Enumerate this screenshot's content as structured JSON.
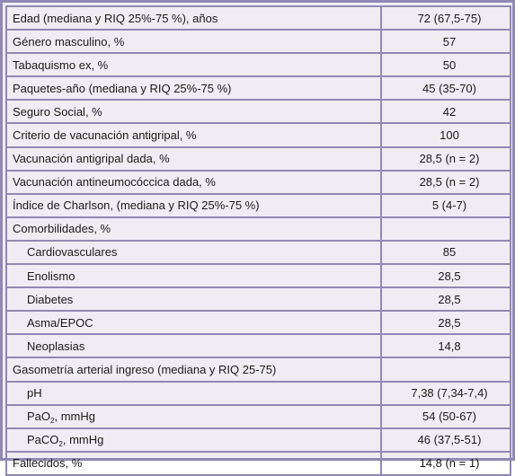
{
  "rows": [
    {
      "label": "Edad (mediana y RIQ 25%-75 %), años",
      "value": "72 (67,5-75)",
      "indent": false
    },
    {
      "label": "Género masculino, %",
      "value": "57",
      "indent": false
    },
    {
      "label": "Tabaquismo ex, %",
      "value": "50",
      "indent": false
    },
    {
      "label": "Paquetes-año (mediana y RIQ 25%-75 %)",
      "value": "45 (35-70)",
      "indent": false
    },
    {
      "label": "Seguro Social, %",
      "value": "42",
      "indent": false
    },
    {
      "label": "Criterio de vacunación antigripal, %",
      "value": "100",
      "indent": false
    },
    {
      "label": "Vacunación antigripal dada, %",
      "value": "28,5 (n = 2)",
      "indent": false
    },
    {
      "label": "Vacunación antineumocóccica dada, %",
      "value": "28,5 (n = 2)",
      "indent": false
    },
    {
      "label": "Índice de Charlson, (mediana y RIQ 25%-75 %)",
      "value": "5 (4-7)",
      "indent": false
    },
    {
      "label": "Comorbilidades, %",
      "value": "",
      "indent": false
    },
    {
      "label": "Cardiovasculares",
      "value": "85",
      "indent": true
    },
    {
      "label": "Enolismo",
      "value": "28,5",
      "indent": true
    },
    {
      "label": "Diabetes",
      "value": "28,5",
      "indent": true
    },
    {
      "label": "Asma/EPOC",
      "value": "28,5",
      "indent": true
    },
    {
      "label": "Neoplasias",
      "value": "14,8",
      "indent": true
    },
    {
      "label": "Gasometría arterial ingreso (mediana y RIQ 25-75)",
      "value": "",
      "indent": false
    },
    {
      "label": "pH",
      "value": "7,38 (7,34-7,4)",
      "indent": true
    },
    {
      "label": "PaO",
      "label_sub": "2",
      "label_suffix": ", mmHg",
      "value": "54 (50-67)",
      "indent": true
    },
    {
      "label": "PaCO",
      "label_sub": "2",
      "label_suffix": ", mmHg",
      "value": "46 (37,5-51)",
      "indent": true
    },
    {
      "label": "Fallecidos, %",
      "value": "14,8 (n = 1)",
      "indent": false
    }
  ],
  "colors": {
    "border": "#8f89b3",
    "background": "#f0ecf4",
    "text": "#1a1a1a"
  }
}
